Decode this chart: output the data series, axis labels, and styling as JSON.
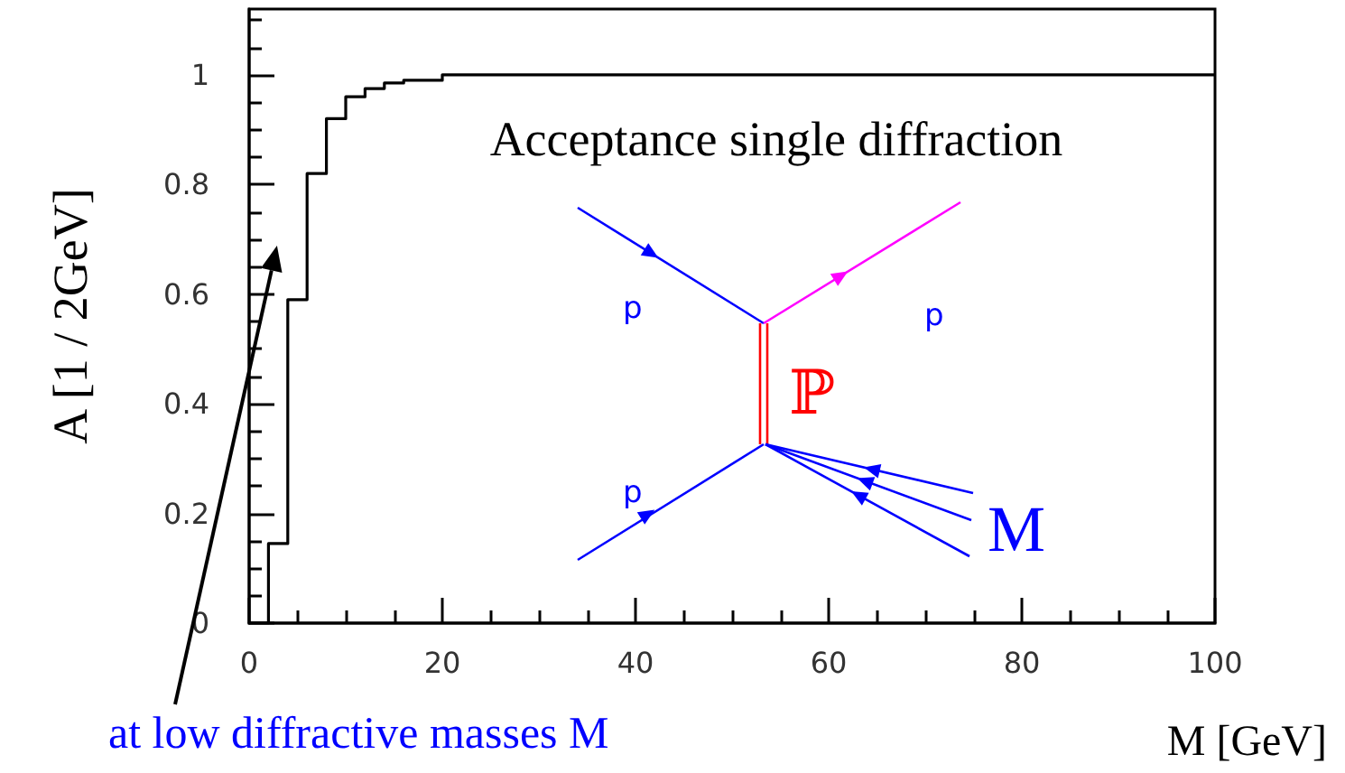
{
  "chart_data": {
    "type": "step",
    "title": "Acceptance single diffraction",
    "xlabel": "M [GeV]",
    "ylabel": "A [1 / 2GeV]",
    "x": [
      0,
      2,
      4,
      6,
      8,
      10,
      12,
      14,
      16,
      18,
      20,
      22,
      24,
      26,
      28,
      30,
      32,
      34,
      36,
      38,
      40,
      42,
      44,
      46,
      48,
      50,
      52,
      54,
      56,
      58,
      60,
      62,
      64,
      66,
      68,
      70,
      72,
      74,
      76,
      78,
      80,
      82,
      84,
      86,
      88,
      90,
      92,
      94,
      96,
      98,
      100
    ],
    "series": [
      {
        "color": "#000000",
        "values": [
          0,
          0.145,
          0.59,
          0.82,
          0.92,
          0.96,
          0.975,
          0.985,
          0.99,
          0.99,
          1,
          1,
          1,
          1,
          1,
          1,
          1,
          1,
          1,
          1,
          1,
          1,
          1,
          1,
          1,
          1,
          1,
          1,
          1,
          1,
          1,
          1,
          1,
          1,
          1,
          1,
          1,
          1,
          1,
          1,
          1,
          1,
          1,
          1,
          1,
          1,
          1,
          1,
          1,
          1,
          1
        ]
      }
    ],
    "xlim": [
      0,
      100
    ],
    "xticks": [
      0,
      20,
      40,
      60,
      80,
      100
    ],
    "ylim": [
      0,
      1.12
    ],
    "yticks": [
      0,
      0.2,
      0.4,
      0.6,
      0.8,
      1
    ],
    "grid": false,
    "marker": "none",
    "line_style": "solid",
    "annotations": [
      "p",
      "p",
      "ℙ",
      "p",
      "M",
      "at low diffractive masses M"
    ]
  }
}
